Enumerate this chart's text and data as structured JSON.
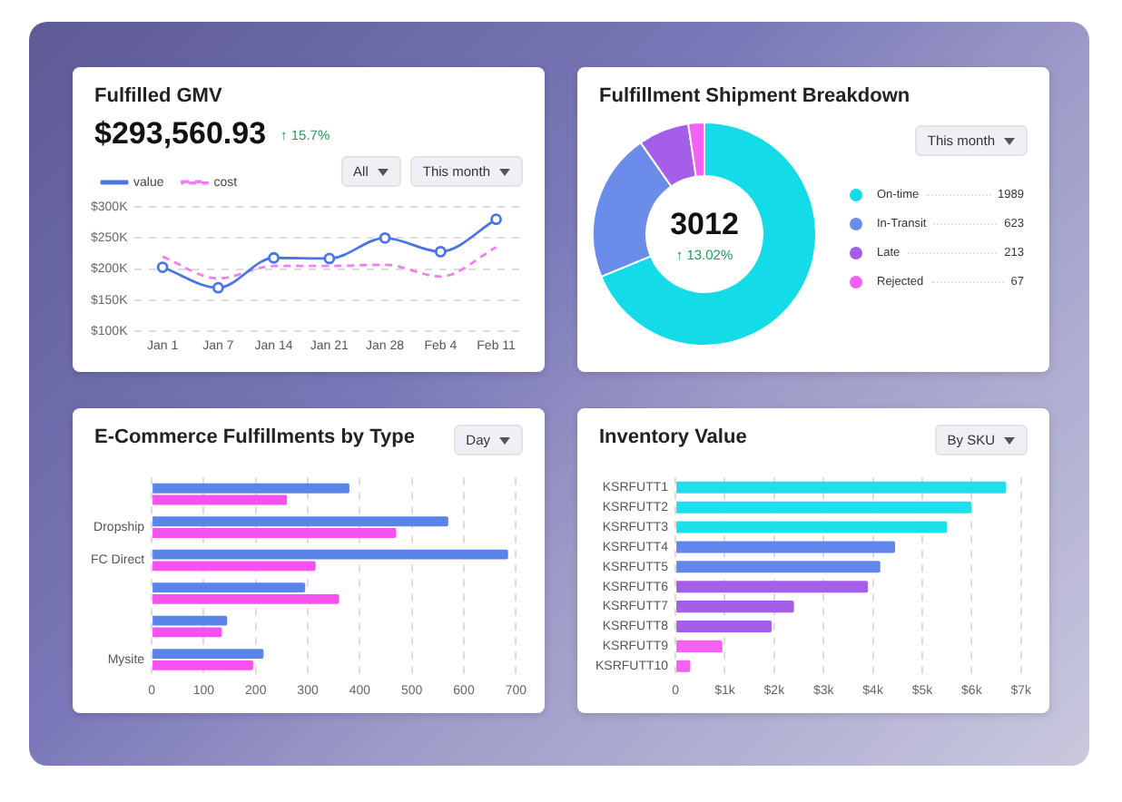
{
  "chart_data": [
    {
      "type": "line",
      "title": "Fulfilled GMV",
      "subtitle": "$293,560.93",
      "annotations": [
        "↑ 15.7%",
        "All",
        "This month"
      ],
      "categories": [
        "Jan 1",
        "Jan 7",
        "Jan 14",
        "Jan 21",
        "Jan 28",
        "Feb 4",
        "Feb 11"
      ],
      "series": [
        {
          "name": "value",
          "color": "#4a74e8",
          "values": [
            203,
            170,
            218,
            217,
            250,
            228,
            280
          ],
          "marker": "circle",
          "line_style": "solid"
        },
        {
          "name": "cost",
          "color": "#f07ef5",
          "values": [
            220,
            185,
            205,
            205,
            207,
            188,
            235
          ],
          "marker": "none",
          "line_style": "dashed"
        }
      ],
      "ylim": [
        100,
        300
      ],
      "yticks": [
        {
          "value": 100,
          "label": "$100K"
        },
        {
          "value": 150,
          "label": "$150K"
        },
        {
          "value": 200,
          "label": "$200K"
        },
        {
          "value": 250,
          "label": "$250K"
        },
        {
          "value": 300,
          "label": "$300K"
        }
      ],
      "grid": "y",
      "legend": "top left"
    },
    {
      "type": "donut",
      "title": "Fulfillment Shipment Breakdown",
      "subtitle": "3012",
      "annotations": [
        "↑ 13.02%",
        "This month"
      ],
      "categories": [
        "On-time",
        "In-Transit",
        "Late",
        "Rejected"
      ],
      "values": [
        1989,
        623,
        213,
        67
      ],
      "colors": [
        "#14dbe8",
        "#6b8ce8",
        "#a55eea",
        "#f45ff5"
      ],
      "data_labels": true,
      "legend": "right"
    },
    {
      "type": "bar",
      "orientation": "horizontal",
      "title": "E-Commerce Fulfillments by Type",
      "annotations": [
        "Day"
      ],
      "categories": [
        null,
        "Dropship",
        "FC Direct",
        null,
        null,
        "Mysite"
      ],
      "series": [
        {
          "color": "#5b84ea",
          "values": [
            380,
            570,
            685,
            295,
            145,
            215
          ]
        },
        {
          "color": "#f552f0",
          "values": [
            260,
            470,
            315,
            360,
            135,
            195
          ]
        }
      ],
      "xlim": [
        0,
        700
      ],
      "xticks": [
        0,
        100,
        200,
        300,
        400,
        500,
        600,
        700
      ],
      "grid": "x"
    },
    {
      "type": "bar",
      "orientation": "horizontal",
      "title": "Inventory Value",
      "annotations": [
        "By SKU"
      ],
      "categories": [
        "KSRFUTT1",
        "KSRFUTT2",
        "KSRFUTT3",
        "KSRFUTT4",
        "KSRFUTT5",
        "KSRFUTT6",
        "KSRFUTT7",
        "KSRFUTT8",
        "KSRFUTT9",
        "KSRFUTT10"
      ],
      "values": [
        6700,
        6000,
        5500,
        4450,
        4150,
        3900,
        2400,
        1950,
        950,
        300
      ],
      "colors": [
        "#1ee0ea",
        "#1ee0ea",
        "#1ee0ea",
        "#6286ea",
        "#6286ea",
        "#a55ee8",
        "#a55ee8",
        "#a55ee8",
        "#f75ff5",
        "#f75ff5"
      ],
      "xlim": [
        0,
        7000
      ],
      "xticks": [
        0,
        {
          "value": 1000,
          "label": "$1k"
        },
        {
          "value": 2000,
          "label": "$2k"
        },
        {
          "value": 3000,
          "label": "$3k"
        },
        {
          "value": 4000,
          "label": "$4k"
        },
        {
          "value": 5000,
          "label": "$5k"
        },
        {
          "value": 6000,
          "label": "$6k"
        },
        {
          "value": 7000,
          "label": "$7k"
        }
      ],
      "grid": "x"
    }
  ]
}
